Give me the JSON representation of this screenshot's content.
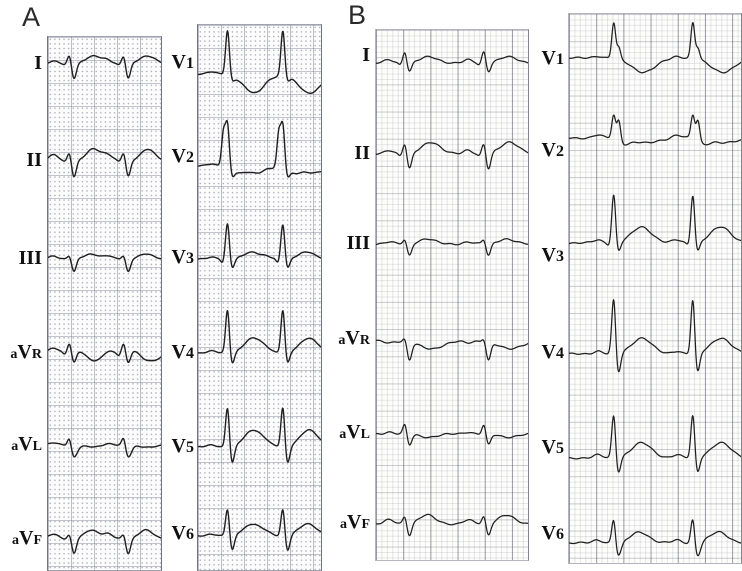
{
  "colors": {
    "paper": "#fcfcfd",
    "trace": "#1f1f1f",
    "grid_a_line": "#8f93a6",
    "grid_b_line": "#6d7180",
    "label_text": "#101010"
  },
  "figure": {
    "panel_a_label": "A",
    "panel_b_label": "B"
  },
  "chart_data": {
    "type": "line",
    "description": "Two 12-lead electrocardiogram recordings shown side by side. Each panel has a limb-lead strip column (I, II, III, aVR, aVL, aVF) and a precordial strip column (V1-V6) on ECG graph paper, with two cardiac cycles per strip. Panel A paper has dotted minor squares with solid major lines; panel B paper has a fine grid with prominent dark vertical major lines. Waveform morphology per lead is given as amplitudes in pixels (positive = upward deflection) for P, Q, R (r2 = second R peak/notch), S, ST segment shift and T wave; beats = horizontal beat centers as fraction of strip width.",
    "panels": [
      {
        "label": "A",
        "grid_style": "dotted 1 mm squares with solid 5 mm major lines",
        "limb_leads": [
          {
            "name": "I",
            "beats": [
              0.19,
              0.67
            ],
            "p": 3,
            "q": -1,
            "r": 9,
            "s": -15,
            "t": 8,
            "tw": 8,
            "tdx": 24
          },
          {
            "name": "II",
            "beats": [
              0.19,
              0.67
            ],
            "p": 6,
            "pw": 5,
            "q": -1,
            "r": 9,
            "s": -16,
            "t": 12,
            "tw": 7,
            "tdx": 24
          },
          {
            "name": "III",
            "beats": [
              0.19,
              0.67
            ],
            "p": 3,
            "r": 4,
            "s": -13,
            "t": 5,
            "tw": 7,
            "tdx": 22
          },
          {
            "name": "aVR",
            "beats": [
              0.19,
              0.67
            ],
            "p": 5,
            "pw": 5,
            "q": -2,
            "r": 10,
            "s": -11,
            "st": 4,
            "t": -8,
            "tw": 10,
            "tdx": 26
          },
          {
            "name": "aVL",
            "beats": [
              0.19,
              0.67
            ],
            "p": 2,
            "r": 10,
            "s": -12,
            "sw": 3.2,
            "t": -2,
            "tw": 9,
            "tdx": 24
          },
          {
            "name": "aVF",
            "beats": [
              0.19,
              0.67
            ],
            "p": 5,
            "pw": 5,
            "r": 5,
            "s": -15,
            "t": 9,
            "tw": 7,
            "tdx": 22
          }
        ],
        "chest_leads": [
          {
            "name": "V1",
            "beats": [
              0.24,
              0.69
            ],
            "p": 2,
            "r": 45,
            "s": -5,
            "t": -19,
            "tw": 11,
            "tdx": 27
          },
          {
            "name": "V2",
            "beats": [
              0.24,
              0.69
            ],
            "p": 2,
            "r": 42,
            "r2": 34,
            "r2dx": -4,
            "s": -8,
            "st": -5,
            "t": -7,
            "tw": 12,
            "tdx": 30
          },
          {
            "name": "V3",
            "beats": [
              0.24,
              0.69
            ],
            "p": 2,
            "q": -4,
            "r": 36,
            "s": -10,
            "t": 7,
            "tw": 8,
            "tdx": 24
          },
          {
            "name": "V4",
            "beats": [
              0.24,
              0.69
            ],
            "p": 2,
            "r": 44,
            "s": -12,
            "t": 15,
            "tw": 9,
            "tdx": 26
          },
          {
            "name": "V5",
            "beats": [
              0.24,
              0.69
            ],
            "p": 2,
            "r": 41,
            "s": -18,
            "t": 17,
            "tw": 9,
            "tdx": 26
          },
          {
            "name": "V6",
            "beats": [
              0.24,
              0.69
            ],
            "p": 2,
            "r": 28,
            "s": -16,
            "t": 12,
            "tw": 9,
            "tdx": 25
          }
        ]
      },
      {
        "label": "B",
        "grid_style": "fine 1 mm grid with prominent dark vertical 5 mm lines",
        "limb_leads": [
          {
            "name": "I",
            "beats": [
              0.19,
              0.71
            ],
            "p": 3,
            "q": -2,
            "r": 12,
            "s": -9,
            "t": 6,
            "tw": 9,
            "tdx": 24
          },
          {
            "name": "II",
            "beats": [
              0.19,
              0.71
            ],
            "p": 4,
            "q": -2,
            "r": 11,
            "s": -16,
            "t": 12,
            "tw": 9,
            "tdx": 26
          },
          {
            "name": "III",
            "beats": [
              0.19,
              0.71
            ],
            "p": 2,
            "r": 5,
            "s": -12,
            "t": 5,
            "tw": 8,
            "tdx": 22
          },
          {
            "name": "aVR",
            "beats": [
              0.19,
              0.71
            ],
            "p": -2,
            "r": 4,
            "s": -18,
            "t": -8,
            "tw": 11,
            "tdx": 26
          },
          {
            "name": "aVL",
            "beats": [
              0.19,
              0.71
            ],
            "p": 2,
            "r": 10,
            "s": -11,
            "t": -3,
            "tw": 9,
            "tdx": 24
          },
          {
            "name": "aVF",
            "beats": [
              0.19,
              0.71
            ],
            "p": 4,
            "pw": 5,
            "r": 8,
            "s": -12,
            "t": 9,
            "tw": 8,
            "tdx": 22
          }
        ],
        "chest_leads": [
          {
            "name": "V1",
            "beats": [
              0.26,
              0.72
            ],
            "p": 2,
            "r": 36,
            "r2": 14,
            "r2dx": 5,
            "s": -3,
            "t": -14,
            "tw": 12,
            "tdx": 30
          },
          {
            "name": "V2",
            "beats": [
              0.26,
              0.72
            ],
            "p": 3,
            "r": 24,
            "r2": 26,
            "r2dx": 5,
            "s": -6,
            "st": -5,
            "t": -5,
            "tw": 12,
            "tdx": 32
          },
          {
            "name": "V3",
            "beats": [
              0.26,
              0.72
            ],
            "p": 3,
            "q": -2,
            "r": 49,
            "s": -10,
            "t": 16,
            "tw": 10,
            "tdx": 28
          },
          {
            "name": "V4",
            "beats": [
              0.26,
              0.72
            ],
            "p": 3,
            "r": 56,
            "s": -21,
            "t": 16,
            "tw": 10,
            "tdx": 28
          },
          {
            "name": "V5",
            "beats": [
              0.26,
              0.72
            ],
            "p": 3,
            "r": 44,
            "s": -16,
            "t": 15,
            "tw": 10,
            "tdx": 28
          },
          {
            "name": "V6",
            "beats": [
              0.26,
              0.72
            ],
            "p": 3,
            "r": 27,
            "s": -14,
            "sw": 3,
            "t": 11,
            "tw": 9,
            "tdx": 26
          }
        ]
      }
    ]
  }
}
